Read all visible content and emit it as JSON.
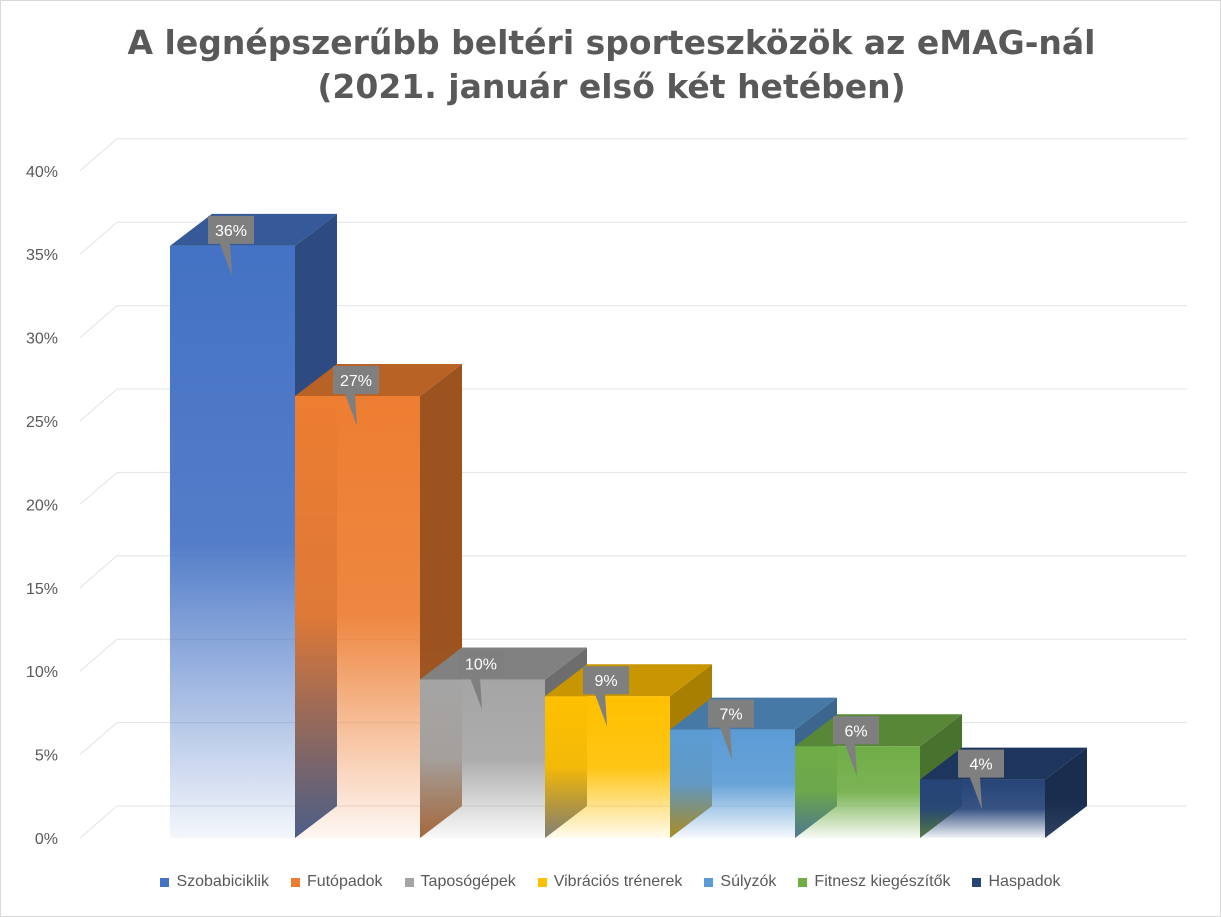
{
  "chart_data": {
    "type": "bar",
    "title_lines": [
      "A legnépszerűbb beltéri sporteszközök az eMAG-nál",
      "(2021. január első két hetében)"
    ],
    "categories": [
      "Szobabiciklik",
      "Futópadok",
      "Taposógépek",
      "Vibrációs trénerek",
      "Súlyzók",
      "Fitnesz kiegészítők",
      "Haspadok"
    ],
    "values": [
      0.355,
      0.265,
      0.095,
      0.085,
      0.065,
      0.055,
      0.035
    ],
    "data_labels": [
      "36%",
      "27%",
      "10%",
      "9%",
      "7%",
      "6%",
      "4%"
    ],
    "colors": [
      "#4472c4",
      "#ed7d31",
      "#a5a5a5",
      "#ffc000",
      "#5b9bd5",
      "#70ad47",
      "#264478"
    ],
    "y_ticks": [
      "0%",
      "5%",
      "10%",
      "15%",
      "20%",
      "25%",
      "30%",
      "35%",
      "40%"
    ],
    "ylim": [
      0,
      0.4
    ],
    "grid": true,
    "legend_position": "bottom",
    "style": "3d-column"
  }
}
